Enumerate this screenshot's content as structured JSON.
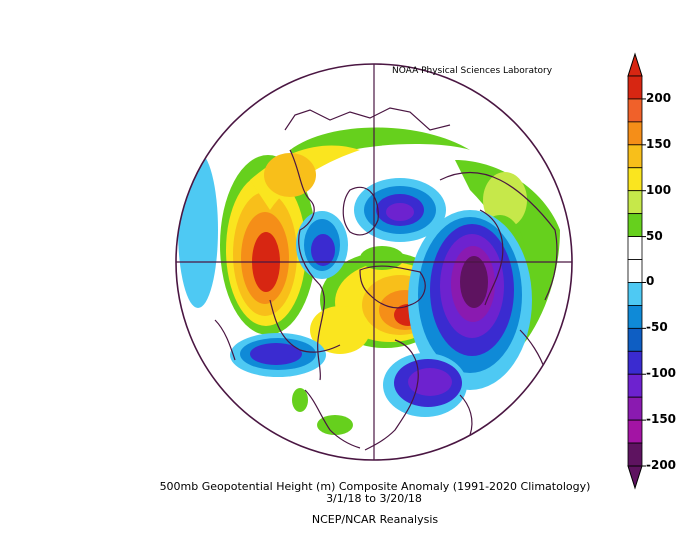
{
  "credit": "NOAA Physical Sciences Laboratory",
  "caption": {
    "line1": "500mb Geopotential Height (m) Composite Anomaly (1991-2020 Climatology)",
    "line2": "3/1/18   to 3/20/18",
    "line3": "NCEP/NCAR Reanalysis"
  },
  "colorbar": {
    "ticks": [
      "200",
      "150",
      "100",
      "50",
      "0",
      "-50",
      "-100",
      "-150",
      "-200"
    ],
    "colors": [
      "#d72612",
      "#f0612a",
      "#f58e18",
      "#f8bf1a",
      "#fae51f",
      "#c6e84a",
      "#66d01d",
      "#ffffff",
      "#ffffff",
      "#4ec9f3",
      "#0f8ad7",
      "#0e5ec3",
      "#3a2bd0",
      "#6d22cf",
      "#8a1ab0",
      "#a314a4",
      "#5e1360"
    ]
  },
  "map": {
    "projection": "polar-stereographic",
    "hemisphere": "northern",
    "outline_color": "#4a1642"
  }
}
